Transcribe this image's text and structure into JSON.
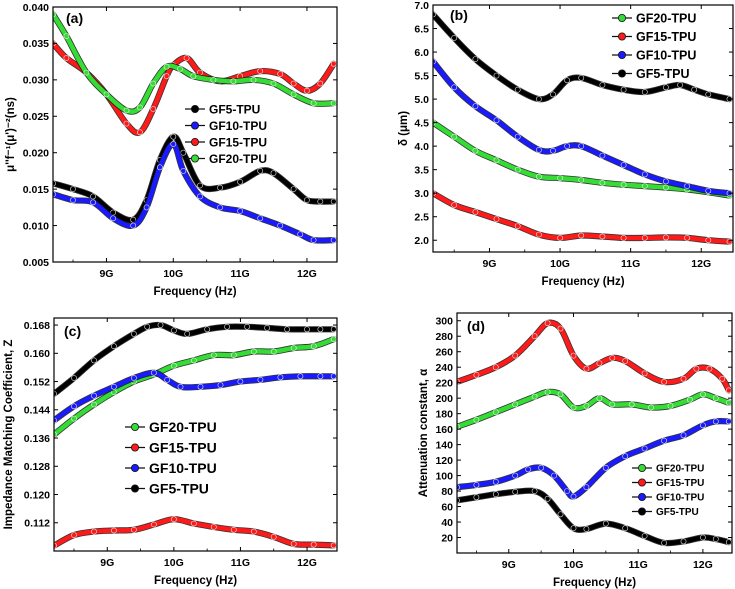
{
  "chart_data": [
    {
      "panel": "(a)",
      "type": "line",
      "xlabel": "Frequency (Hz)",
      "ylabel": "μ''f⁻¹(μ')⁻²(ns)",
      "xlim": [
        8.2,
        12.45
      ],
      "ylim": [
        0.005,
        0.04
      ],
      "xticks": [
        9,
        10,
        11,
        12
      ],
      "xticklabels": [
        "9G",
        "10G",
        "11G",
        "12G"
      ],
      "yticks": [
        0.005,
        0.01,
        0.015,
        0.02,
        0.025,
        0.03,
        0.035,
        0.04
      ],
      "yticklabels": [
        "0.005",
        "0.010",
        "0.015",
        "0.020",
        "0.025",
        "0.030",
        "0.035",
        "0.040"
      ],
      "legend_position": "center-right",
      "series": [
        {
          "name": "GF5-TPU",
          "color": "#000000",
          "x": [
            8.2,
            8.5,
            8.8,
            9.1,
            9.4,
            9.6,
            9.8,
            10.0,
            10.15,
            10.4,
            10.7,
            11.0,
            11.3,
            11.5,
            11.8,
            12.0,
            12.2,
            12.4
          ],
          "y": [
            0.0158,
            0.015,
            0.014,
            0.0118,
            0.0108,
            0.0135,
            0.019,
            0.0222,
            0.02,
            0.0155,
            0.0152,
            0.016,
            0.0175,
            0.0172,
            0.015,
            0.0135,
            0.0133,
            0.0133
          ]
        },
        {
          "name": "GF10-TPU",
          "color": "#1a1aff",
          "x": [
            8.2,
            8.5,
            8.8,
            9.1,
            9.4,
            9.6,
            9.8,
            10.0,
            10.15,
            10.4,
            10.7,
            11.0,
            11.3,
            11.6,
            11.9,
            12.1,
            12.4
          ],
          "y": [
            0.0143,
            0.0135,
            0.0132,
            0.011,
            0.01,
            0.0125,
            0.018,
            0.0212,
            0.0175,
            0.014,
            0.0125,
            0.012,
            0.011,
            0.01,
            0.0088,
            0.008,
            0.008
          ]
        },
        {
          "name": "GF15-TPU",
          "color": "#ff1a1a",
          "x": [
            8.2,
            8.4,
            8.7,
            9.0,
            9.3,
            9.5,
            9.7,
            9.9,
            10.0,
            10.2,
            10.4,
            10.7,
            11.0,
            11.3,
            11.6,
            11.8,
            12.0,
            12.2,
            12.4
          ],
          "y": [
            0.035,
            0.033,
            0.031,
            0.028,
            0.024,
            0.0228,
            0.026,
            0.0305,
            0.032,
            0.033,
            0.031,
            0.0298,
            0.0305,
            0.0312,
            0.0308,
            0.0295,
            0.0285,
            0.0295,
            0.0322
          ]
        },
        {
          "name": "GF20-TPU",
          "color": "#33dd33",
          "x": [
            8.2,
            8.4,
            8.7,
            9.0,
            9.3,
            9.5,
            9.7,
            9.9,
            10.1,
            10.3,
            10.6,
            10.9,
            11.2,
            11.5,
            11.8,
            12.1,
            12.4
          ],
          "y": [
            0.039,
            0.036,
            0.031,
            0.028,
            0.0258,
            0.0262,
            0.0295,
            0.0318,
            0.0315,
            0.0305,
            0.03,
            0.0298,
            0.03,
            0.0295,
            0.028,
            0.0268,
            0.0268
          ]
        }
      ]
    },
    {
      "panel": "(b)",
      "type": "line",
      "xlabel": "Frequency (Hz)",
      "ylabel": "δ (μm)",
      "xlim": [
        8.2,
        12.45
      ],
      "ylim": [
        1.75,
        7.0
      ],
      "xticks": [
        9,
        10,
        11,
        12
      ],
      "xticklabels": [
        "9G",
        "10G",
        "11G",
        "12G"
      ],
      "yticks": [
        2.0,
        2.5,
        3.0,
        3.5,
        4.0,
        4.5,
        5.0,
        5.5,
        6.0,
        6.5,
        7.0
      ],
      "yticklabels": [
        "2.0",
        "2.5",
        "3.0",
        "3.5",
        "4.0",
        "4.5",
        "5.0",
        "5.5",
        "6.0",
        "6.5",
        "7.0"
      ],
      "legend_position": "top-right",
      "series": [
        {
          "name": "GF20-TPU",
          "color": "#33dd33",
          "x": [
            8.2,
            8.5,
            8.8,
            9.1,
            9.4,
            9.7,
            10.0,
            10.3,
            10.6,
            10.9,
            11.2,
            11.5,
            11.8,
            12.1,
            12.4
          ],
          "y": [
            4.5,
            4.2,
            3.9,
            3.7,
            3.5,
            3.35,
            3.32,
            3.28,
            3.22,
            3.18,
            3.15,
            3.12,
            3.08,
            3.02,
            2.95
          ]
        },
        {
          "name": "GF15-TPU",
          "color": "#ff1a1a",
          "x": [
            8.2,
            8.5,
            8.8,
            9.1,
            9.4,
            9.7,
            10.0,
            10.3,
            10.6,
            10.9,
            11.2,
            11.5,
            11.8,
            12.1,
            12.4
          ],
          "y": [
            3.0,
            2.75,
            2.6,
            2.45,
            2.3,
            2.12,
            2.05,
            2.1,
            2.08,
            2.05,
            2.05,
            2.06,
            2.05,
            2.0,
            1.97
          ]
        },
        {
          "name": "GF10-TPU",
          "color": "#1a1aff",
          "x": [
            8.2,
            8.5,
            8.8,
            9.1,
            9.4,
            9.7,
            9.9,
            10.1,
            10.3,
            10.6,
            10.9,
            11.2,
            11.5,
            11.8,
            12.1,
            12.4
          ],
          "y": [
            5.8,
            5.25,
            4.85,
            4.55,
            4.2,
            3.92,
            3.9,
            4.0,
            4.0,
            3.8,
            3.6,
            3.4,
            3.25,
            3.15,
            3.05,
            3.0
          ]
        },
        {
          "name": "GF5-TPU",
          "color": "#000000",
          "x": [
            8.2,
            8.5,
            8.8,
            9.1,
            9.4,
            9.7,
            9.9,
            10.1,
            10.3,
            10.6,
            10.9,
            11.2,
            11.5,
            11.7,
            11.9,
            12.1,
            12.4
          ],
          "y": [
            6.8,
            6.3,
            5.85,
            5.5,
            5.2,
            5.0,
            5.1,
            5.4,
            5.45,
            5.3,
            5.2,
            5.15,
            5.25,
            5.3,
            5.2,
            5.1,
            5.0
          ]
        }
      ]
    },
    {
      "panel": "(c)",
      "type": "line",
      "xlabel": "Frequency (Hz)",
      "ylabel": "Impedance Matching Coefficient, Z",
      "xlim": [
        8.2,
        12.45
      ],
      "ylim": [
        0.104,
        0.17
      ],
      "xticks": [
        9,
        10,
        11,
        12
      ],
      "xticklabels": [
        "9G",
        "10G",
        "11G",
        "12G"
      ],
      "yticks": [
        0.112,
        0.12,
        0.128,
        0.136,
        0.144,
        0.152,
        0.16,
        0.168
      ],
      "yticklabels": [
        "0.112",
        "0.120",
        "0.128",
        "0.136",
        "0.144",
        "0.152",
        "0.160",
        "0.168"
      ],
      "legend_position": "center",
      "series": [
        {
          "name": "GF20-TPU",
          "color": "#33dd33",
          "x": [
            8.2,
            8.5,
            8.8,
            9.1,
            9.4,
            9.7,
            10.0,
            10.3,
            10.6,
            10.9,
            11.2,
            11.5,
            11.8,
            12.1,
            12.4
          ],
          "y": [
            0.137,
            0.1415,
            0.1455,
            0.149,
            0.152,
            0.154,
            0.1565,
            0.158,
            0.1595,
            0.1595,
            0.1605,
            0.1605,
            0.1615,
            0.162,
            0.164
          ]
        },
        {
          "name": "GF15-TPU",
          "color": "#ff1a1a",
          "x": [
            8.2,
            8.5,
            8.8,
            9.1,
            9.4,
            9.7,
            10.0,
            10.3,
            10.6,
            10.9,
            11.2,
            11.5,
            11.8,
            12.1,
            12.4
          ],
          "y": [
            0.1055,
            0.1085,
            0.1095,
            0.1098,
            0.11,
            0.1115,
            0.113,
            0.1118,
            0.1108,
            0.11,
            0.1095,
            0.108,
            0.106,
            0.1058,
            0.1056
          ]
        },
        {
          "name": "GF10-TPU",
          "color": "#1a1aff",
          "x": [
            8.2,
            8.5,
            8.8,
            9.1,
            9.4,
            9.7,
            9.9,
            10.1,
            10.4,
            10.7,
            11.0,
            11.3,
            11.6,
            11.9,
            12.2,
            12.4
          ],
          "y": [
            0.141,
            0.145,
            0.148,
            0.1505,
            0.153,
            0.1545,
            0.1525,
            0.1505,
            0.1505,
            0.151,
            0.152,
            0.1525,
            0.1532,
            0.1535,
            0.1535,
            0.1535
          ]
        },
        {
          "name": "GF5-TPU",
          "color": "#000000",
          "x": [
            8.2,
            8.5,
            8.8,
            9.1,
            9.4,
            9.6,
            9.8,
            10.0,
            10.2,
            10.5,
            10.8,
            11.1,
            11.4,
            11.7,
            12.0,
            12.2,
            12.4
          ],
          "y": [
            0.1485,
            0.153,
            0.158,
            0.162,
            0.1655,
            0.1675,
            0.168,
            0.1665,
            0.1655,
            0.1668,
            0.1675,
            0.1675,
            0.1672,
            0.1668,
            0.1668,
            0.1668,
            0.1668
          ]
        }
      ]
    },
    {
      "panel": "(d)",
      "type": "line",
      "xlabel": "Frequency (Hz)",
      "ylabel": "Attenuation constant, α",
      "xlim": [
        8.2,
        12.45
      ],
      "ylim": [
        0,
        310
      ],
      "xticks": [
        9,
        10,
        11,
        12
      ],
      "xticklabels": [
        "9G",
        "10G",
        "11G",
        "12G"
      ],
      "yticks": [
        20,
        40,
        60,
        80,
        100,
        120,
        140,
        160,
        180,
        200,
        220,
        240,
        260,
        280,
        300
      ],
      "yticklabels": [
        "20",
        "40",
        "60",
        "80",
        "100",
        "120",
        "140",
        "160",
        "180",
        "200",
        "220",
        "240",
        "260",
        "280",
        "300"
      ],
      "legend_position": "bottom-right",
      "series": [
        {
          "name": "GF20-TPU",
          "color": "#33dd33",
          "x": [
            8.2,
            8.5,
            8.8,
            9.1,
            9.4,
            9.6,
            9.8,
            10.0,
            10.2,
            10.4,
            10.6,
            10.9,
            11.2,
            11.5,
            11.8,
            12.0,
            12.2,
            12.4
          ],
          "y": [
            163,
            172,
            182,
            192,
            202,
            208,
            205,
            188,
            190,
            200,
            192,
            192,
            188,
            190,
            198,
            205,
            200,
            194
          ]
        },
        {
          "name": "GF15-TPU",
          "color": "#ff1a1a",
          "x": [
            8.2,
            8.5,
            8.8,
            9.1,
            9.4,
            9.6,
            9.8,
            10.0,
            10.2,
            10.4,
            10.6,
            10.8,
            11.1,
            11.4,
            11.7,
            11.9,
            12.1,
            12.3,
            12.4
          ],
          "y": [
            221,
            230,
            240,
            255,
            280,
            297,
            290,
            255,
            238,
            245,
            252,
            248,
            232,
            221,
            225,
            238,
            238,
            225,
            210
          ]
        },
        {
          "name": "GF10-TPU",
          "color": "#1a1aff",
          "x": [
            8.2,
            8.5,
            8.8,
            9.1,
            9.3,
            9.5,
            9.7,
            9.9,
            10.0,
            10.2,
            10.5,
            10.8,
            11.1,
            11.4,
            11.7,
            12.0,
            12.2,
            12.4
          ],
          "y": [
            85,
            88,
            92,
            100,
            108,
            110,
            100,
            80,
            73,
            85,
            110,
            125,
            135,
            145,
            152,
            165,
            170,
            170
          ]
        },
        {
          "name": "GF5-TPU",
          "color": "#000000",
          "x": [
            8.2,
            8.5,
            8.8,
            9.1,
            9.4,
            9.6,
            9.8,
            10.0,
            10.2,
            10.5,
            10.8,
            11.1,
            11.4,
            11.7,
            12.0,
            12.2,
            12.4
          ],
          "y": [
            68,
            72,
            76,
            79,
            80,
            70,
            50,
            32,
            31,
            38,
            32,
            22,
            13,
            15,
            20,
            18,
            14
          ]
        }
      ]
    }
  ]
}
